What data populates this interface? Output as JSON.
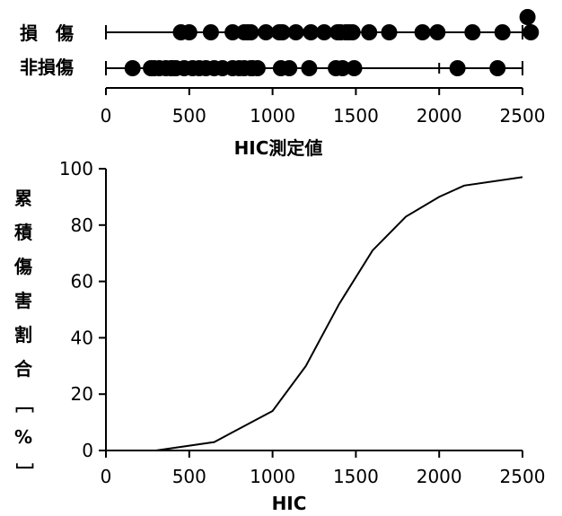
{
  "chart_data": [
    {
      "type": "scatter",
      "xlabel": "HIC測定値",
      "xlim": [
        0,
        2500
      ],
      "x_ticks": [
        "0",
        "500",
        "1000",
        "1500",
        "2000",
        "2500"
      ],
      "series": [
        {
          "name": "損　傷",
          "values": [
            450,
            500,
            630,
            760,
            830,
            850,
            870,
            960,
            1040,
            1050,
            1060,
            1140,
            1230,
            1310,
            1390,
            1400,
            1410,
            1440,
            1460,
            1480,
            1580,
            1700,
            1900,
            1990,
            2200,
            2380,
            2530,
            2550
          ]
        },
        {
          "name": "非損傷",
          "values": [
            160,
            270,
            290,
            320,
            360,
            390,
            400,
            420,
            470,
            520,
            560,
            600,
            650,
            700,
            760,
            800,
            830,
            870,
            880,
            910,
            1050,
            1100,
            1220,
            1380,
            1420,
            1490,
            2110,
            2350
          ]
        }
      ]
    },
    {
      "type": "line",
      "xlabel": "HIC",
      "ylabel": "累積傷害割合［%］",
      "xlim": [
        0,
        2500
      ],
      "ylim": [
        0,
        100
      ],
      "x_ticks": [
        "0",
        "500",
        "1000",
        "1500",
        "2000",
        "2500"
      ],
      "y_ticks": [
        "0",
        "20",
        "40",
        "60",
        "80",
        "100"
      ],
      "series": [
        {
          "x": [
            0,
            300,
            650,
            1000,
            1200,
            1400,
            1600,
            1800,
            2000,
            2150,
            2500
          ],
          "y": [
            0,
            0,
            3,
            14,
            30,
            52,
            71,
            83,
            90,
            94,
            97
          ]
        }
      ]
    }
  ]
}
